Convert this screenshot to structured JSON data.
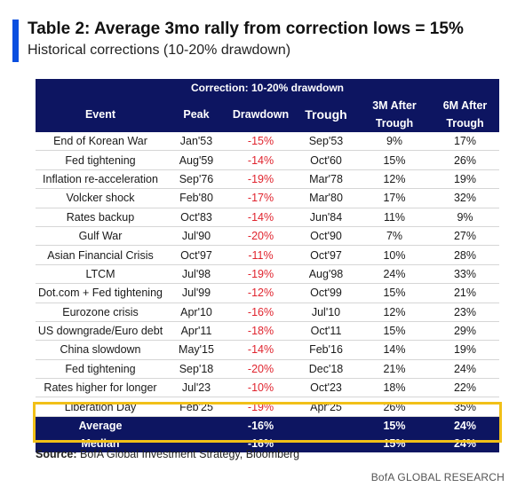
{
  "header": {
    "title": "Table 2: Average 3mo rally from correction lows = 15%",
    "subtitle": "Historical corrections (10-20% drawdown)"
  },
  "table": {
    "band_label": "Correction: 10-20% drawdown",
    "columns": [
      "Event",
      "Peak",
      "Drawdown",
      "Trough",
      "3M After Trough",
      "6M After Trough"
    ],
    "rows": [
      {
        "event": "End of Korean War",
        "peak": "Jan'53",
        "drawdown": "-15%",
        "trough": "Sep'53",
        "m3": "9%",
        "m6": "17%"
      },
      {
        "event": "Fed tightening",
        "peak": "Aug'59",
        "drawdown": "-14%",
        "trough": "Oct'60",
        "m3": "15%",
        "m6": "26%"
      },
      {
        "event": "Inflation re-acceleration",
        "peak": "Sep'76",
        "drawdown": "-19%",
        "trough": "Mar'78",
        "m3": "12%",
        "m6": "19%"
      },
      {
        "event": "Volcker shock",
        "peak": "Feb'80",
        "drawdown": "-17%",
        "trough": "Mar'80",
        "m3": "17%",
        "m6": "32%"
      },
      {
        "event": "Rates backup",
        "peak": "Oct'83",
        "drawdown": "-14%",
        "trough": "Jun'84",
        "m3": "11%",
        "m6": "9%"
      },
      {
        "event": "Gulf War",
        "peak": "Jul'90",
        "drawdown": "-20%",
        "trough": "Oct'90",
        "m3": "7%",
        "m6": "27%"
      },
      {
        "event": "Asian Financial Crisis",
        "peak": "Oct'97",
        "drawdown": "-11%",
        "trough": "Oct'97",
        "m3": "10%",
        "m6": "28%"
      },
      {
        "event": "LTCM",
        "peak": "Jul'98",
        "drawdown": "-19%",
        "trough": "Aug'98",
        "m3": "24%",
        "m6": "33%"
      },
      {
        "event": "Dot.com + Fed tightening",
        "peak": "Jul'99",
        "drawdown": "-12%",
        "trough": "Oct'99",
        "m3": "15%",
        "m6": "21%"
      },
      {
        "event": "Eurozone crisis",
        "peak": "Apr'10",
        "drawdown": "-16%",
        "trough": "Jul'10",
        "m3": "12%",
        "m6": "23%"
      },
      {
        "event": "US downgrade/Euro debt",
        "peak": "Apr'11",
        "drawdown": "-18%",
        "trough": "Oct'11",
        "m3": "15%",
        "m6": "29%"
      },
      {
        "event": "China slowdown",
        "peak": "May'15",
        "drawdown": "-14%",
        "trough": "Feb'16",
        "m3": "14%",
        "m6": "19%"
      },
      {
        "event": "Fed tightening",
        "peak": "Sep'18",
        "drawdown": "-20%",
        "trough": "Dec'18",
        "m3": "21%",
        "m6": "24%"
      },
      {
        "event": "Rates higher for longer",
        "peak": "Jul'23",
        "drawdown": "-10%",
        "trough": "Oct'23",
        "m3": "18%",
        "m6": "22%"
      },
      {
        "event": "Liberation Day",
        "peak": "Feb'25",
        "drawdown": "-19%",
        "trough": "Apr'25",
        "m3": "26%",
        "m6": "35%"
      }
    ],
    "summary": [
      {
        "label": "Average",
        "drawdown": "-16%",
        "m3": "15%",
        "m6": "24%"
      },
      {
        "label": "Median",
        "drawdown": "-16%",
        "m3": "15%",
        "m6": "24%"
      }
    ]
  },
  "footer": {
    "source_label": "Source:",
    "source_text": " BofA Global Investment Strategy, Bloomberg",
    "brand": "BofA GLOBAL RESEARCH"
  },
  "colors": {
    "accent": "#0a4fe0",
    "header_bg": "#0d1561",
    "negative": "#e0242e",
    "summary_border": "#f1c018"
  }
}
